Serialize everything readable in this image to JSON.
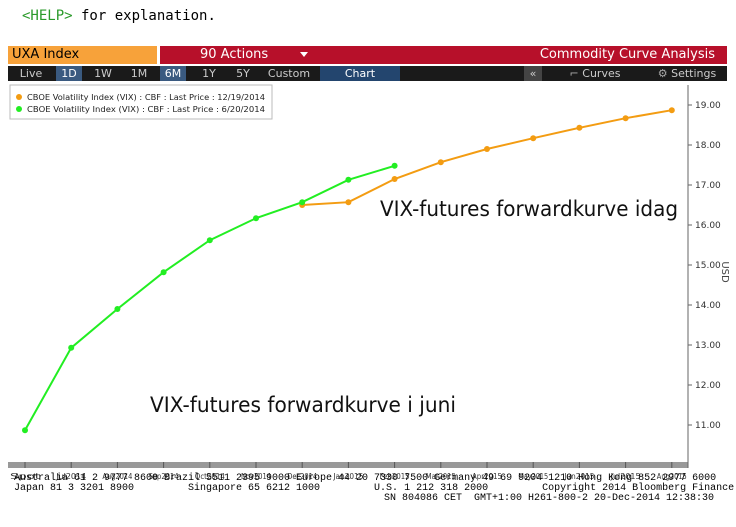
{
  "header": {
    "help_key": "<HELP>",
    "help_text": " for explanation.",
    "security": "UXA Index",
    "actions": "90 Actions",
    "function_title": "Commodity Curve Analysis"
  },
  "toolbar": {
    "ranges": [
      "Live",
      "1D",
      "1W",
      "1M",
      "6M",
      "1Y",
      "5Y",
      "Custom"
    ],
    "active_ranges": [
      "1D",
      "6M"
    ],
    "view": "Chart",
    "collapse": "«",
    "curves": "Curves",
    "settings": "Settings"
  },
  "chart_data": {
    "type": "line",
    "categories": [
      "Spot",
      "Jul2014",
      "Aug2014",
      "Sep2014",
      "Oct2014",
      "Nov2014",
      "Dec2014",
      "Jan2015",
      "Feb2015",
      "Mar2015",
      "Apr2015",
      "May2015",
      "Jun2015",
      "Jul2015",
      "Aug2015"
    ],
    "series": [
      {
        "name": "CBOE Volatility Index (VIX) : CBF : Last Price : 12/19/2014",
        "color": "#f39c12",
        "values": [
          null,
          null,
          null,
          null,
          null,
          null,
          16.5,
          16.57,
          17.15,
          17.57,
          17.9,
          18.17,
          18.43,
          18.67,
          18.87
        ]
      },
      {
        "name": "CBOE Volatility Index (VIX) : CBF : Last Price : 6/20/2014",
        "color": "#22ee22",
        "values": [
          10.87,
          12.93,
          13.9,
          14.82,
          15.62,
          16.17,
          16.57,
          17.13,
          17.48,
          null,
          null,
          null,
          null,
          null,
          null
        ]
      }
    ],
    "ylim": [
      10.05,
      19.5
    ],
    "yticks": [
      {
        "value": 11,
        "label": "11.00"
      },
      {
        "value": 12,
        "label": "12.00"
      },
      {
        "value": 13,
        "label": "13.00"
      },
      {
        "value": 14,
        "label": "14.00"
      },
      {
        "value": 15,
        "label": "15.00"
      },
      {
        "value": 16,
        "label": "16.00"
      },
      {
        "value": 17,
        "label": "17.00"
      },
      {
        "value": 18,
        "label": "18.00"
      },
      {
        "value": 19,
        "label": "19.00"
      }
    ],
    "y_label": "USD",
    "annotations": [
      "VIX-futures forwardkurve idag",
      "VIX-futures forwardkurve i juni"
    ]
  },
  "footer": {
    "lines": [
      "Australia 61 2 9777 8600 Brazil 5511 2395 9000 Europe 44 20 7330 7500 Germany 49 69 9204 1210 Hong Kong 852 2977 6000",
      "Japan 81 3 3201 8900         Singapore 65 6212 1000         U.S. 1 212 318 2000         Copyright 2014 Bloomberg Finance L.P.",
      "SN 804086 CET  GMT+1:00 H261-800-2 20-Dec-2014 12:38:30"
    ]
  }
}
